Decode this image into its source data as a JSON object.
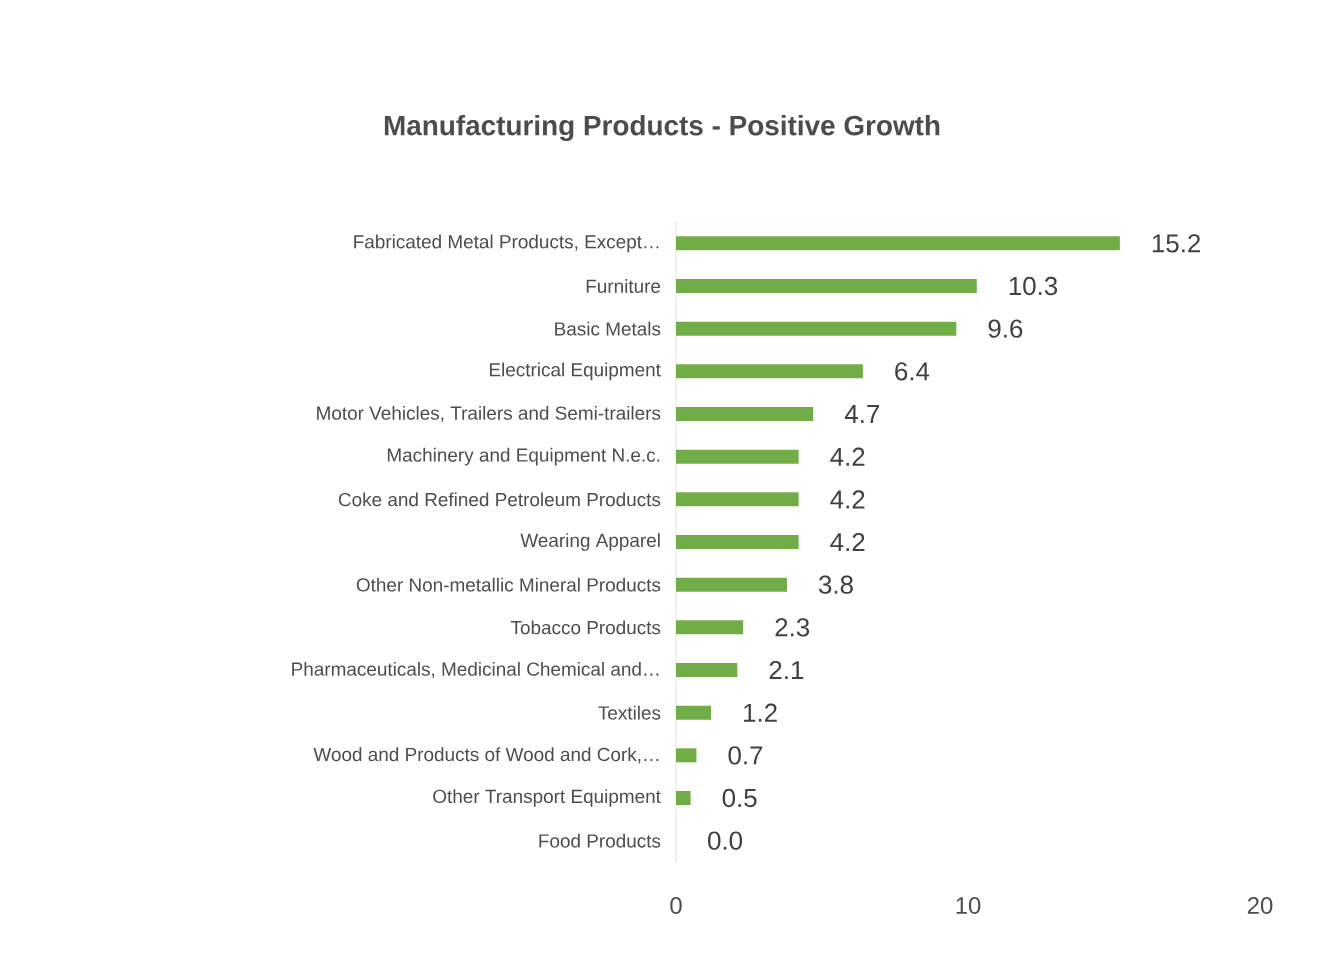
{
  "chart_data": {
    "type": "bar",
    "orientation": "horizontal",
    "title": "Manufacturing Products - Positive Growth",
    "categories": [
      "Fabricated Metal Products, Except…",
      "Furniture",
      "Basic Metals",
      "Electrical Equipment",
      "Motor Vehicles, Trailers and Semi-trailers",
      "Machinery and Equipment N.e.c.",
      "Coke and Refined Petroleum Products",
      "Wearing Apparel",
      "Other Non-metallic Mineral Products",
      "Tobacco Products",
      "Pharmaceuticals, Medicinal Chemical and…",
      "Textiles",
      "Wood and Products of Wood and Cork,…",
      "Other Transport Equipment",
      "Food Products"
    ],
    "values": [
      15.2,
      10.3,
      9.6,
      6.4,
      4.7,
      4.2,
      4.2,
      4.2,
      3.8,
      2.3,
      2.1,
      1.2,
      0.7,
      0.5,
      0.0
    ],
    "value_labels": [
      "15.2",
      "10.3",
      "9.6",
      "6.4",
      "4.7",
      "4.2",
      "4.2",
      "4.2",
      "3.8",
      "2.3",
      "2.1",
      "1.2",
      "0.7",
      "0.5",
      "0.0"
    ],
    "color": "#70ad47",
    "xlim": [
      0,
      20
    ],
    "xticks": [
      0,
      10,
      20
    ],
    "grid": false
  }
}
